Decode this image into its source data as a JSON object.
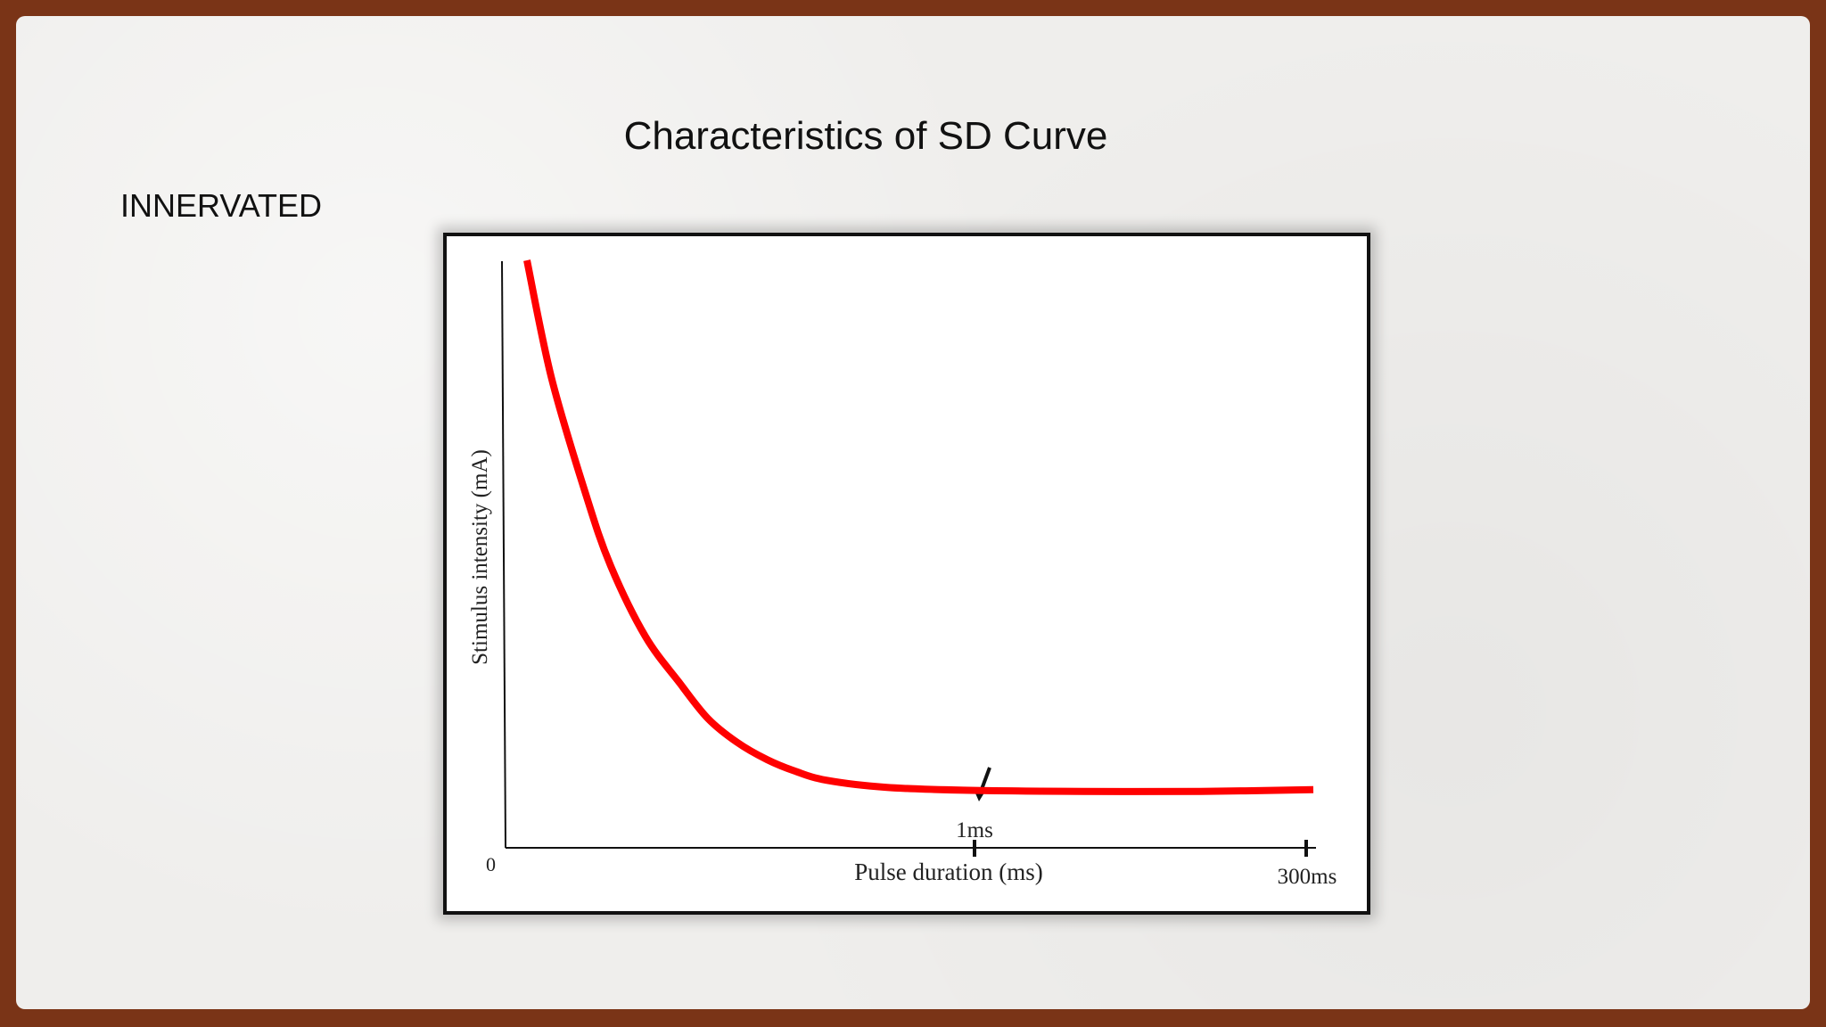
{
  "slide": {
    "title": "Characteristics of SD Curve",
    "subtitle": "INNERVATED"
  },
  "chart_data": {
    "type": "line",
    "title": "",
    "xlabel": "Pulse duration (ms)",
    "ylabel": "Stimulus intensity (mA)",
    "origin_label": "0",
    "x_ticks": [
      {
        "value": 1,
        "label": "1ms"
      },
      {
        "value": 300,
        "label": "300ms"
      }
    ],
    "annotation": {
      "type": "arrow",
      "points_to_x": 1
    },
    "series": [
      {
        "color": "#ff0000",
        "x": [
          0.03,
          0.04,
          0.06,
          0.08,
          0.12,
          0.18,
          0.25,
          0.35,
          0.5,
          0.7,
          1,
          2,
          5,
          20,
          80,
          300
        ],
        "y": [
          100,
          80,
          60,
          48,
          36,
          28,
          22,
          18,
          15,
          13,
          11.5,
          10.3,
          9.8,
          9.6,
          9.6,
          9.9
        ]
      }
    ],
    "grid": false,
    "legend": "none"
  }
}
